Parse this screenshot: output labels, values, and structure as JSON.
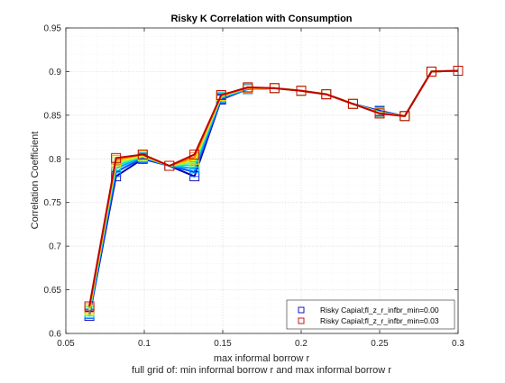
{
  "chart_data": {
    "type": "line",
    "title": "Risky K Correlation with Consumption",
    "xlabel": "max informal borrow r",
    "xlabel2": "full grid of: min informal borrow r and max informal borrow r",
    "ylabel": "Correlation Coefficient",
    "xlim": [
      0.05,
      0.3
    ],
    "ylim": [
      0.6,
      0.95
    ],
    "xticks": [
      "0.05",
      "0.1",
      "0.15",
      "0.2",
      "0.25",
      "0.3"
    ],
    "yticks": [
      "0.6",
      "0.65",
      "0.7",
      "0.75",
      "0.8",
      "0.85",
      "0.9",
      "0.95"
    ],
    "grid": true,
    "legend_position": "bottom-right",
    "x": [
      0.065,
      0.082,
      0.099,
      0.116,
      0.132,
      0.149,
      0.166,
      0.183,
      0.2,
      0.216,
      0.233,
      0.25,
      0.266,
      0.283,
      0.3
    ],
    "series": [
      {
        "name": "Risky Capial;fl_z_r_infbr_min=0.00",
        "color": "#0000b3",
        "marker": "square",
        "legend": true,
        "values": [
          0.62,
          0.78,
          0.8,
          0.792,
          0.78,
          0.868,
          0.88,
          0.881,
          0.878,
          0.874,
          0.863,
          0.855,
          0.849,
          0.9,
          0.901
        ]
      },
      {
        "name": "",
        "color": "#0050ff",
        "marker": "square",
        "legend": false,
        "values": [
          0.622,
          0.785,
          0.801,
          0.792,
          0.785,
          0.869,
          0.88,
          0.881,
          0.878,
          0.874,
          0.863,
          0.854,
          0.849,
          0.9,
          0.901
        ]
      },
      {
        "name": "",
        "color": "#00aaff",
        "marker": "square",
        "legend": false,
        "values": [
          0.623,
          0.789,
          0.802,
          0.792,
          0.789,
          0.87,
          0.88,
          0.881,
          0.878,
          0.874,
          0.863,
          0.854,
          0.849,
          0.9,
          0.901
        ]
      },
      {
        "name": "",
        "color": "#20e0c0",
        "marker": "square",
        "legend": false,
        "values": [
          0.625,
          0.792,
          0.803,
          0.792,
          0.793,
          0.871,
          0.881,
          0.881,
          0.878,
          0.874,
          0.863,
          0.853,
          0.849,
          0.9,
          0.901
        ]
      },
      {
        "name": "",
        "color": "#80ff60",
        "marker": "square",
        "legend": false,
        "values": [
          0.626,
          0.795,
          0.803,
          0.792,
          0.796,
          0.872,
          0.881,
          0.881,
          0.878,
          0.874,
          0.863,
          0.853,
          0.849,
          0.9,
          0.901
        ]
      },
      {
        "name": "",
        "color": "#ffe000",
        "marker": "square",
        "legend": false,
        "values": [
          0.627,
          0.797,
          0.804,
          0.792,
          0.799,
          0.872,
          0.881,
          0.881,
          0.878,
          0.874,
          0.863,
          0.853,
          0.849,
          0.9,
          0.901
        ]
      },
      {
        "name": "",
        "color": "#ff8000",
        "marker": "square",
        "legend": false,
        "values": [
          0.629,
          0.799,
          0.805,
          0.792,
          0.802,
          0.873,
          0.881,
          0.881,
          0.878,
          0.874,
          0.863,
          0.852,
          0.849,
          0.9,
          0.901
        ]
      },
      {
        "name": "Risky Capial;fl_z_r_infbr_min=0.03",
        "color": "#c00000",
        "marker": "square",
        "legend": true,
        "values": [
          0.631,
          0.801,
          0.805,
          0.792,
          0.805,
          0.873,
          0.882,
          0.881,
          0.878,
          0.874,
          0.863,
          0.852,
          0.849,
          0.9,
          0.901
        ]
      }
    ]
  }
}
